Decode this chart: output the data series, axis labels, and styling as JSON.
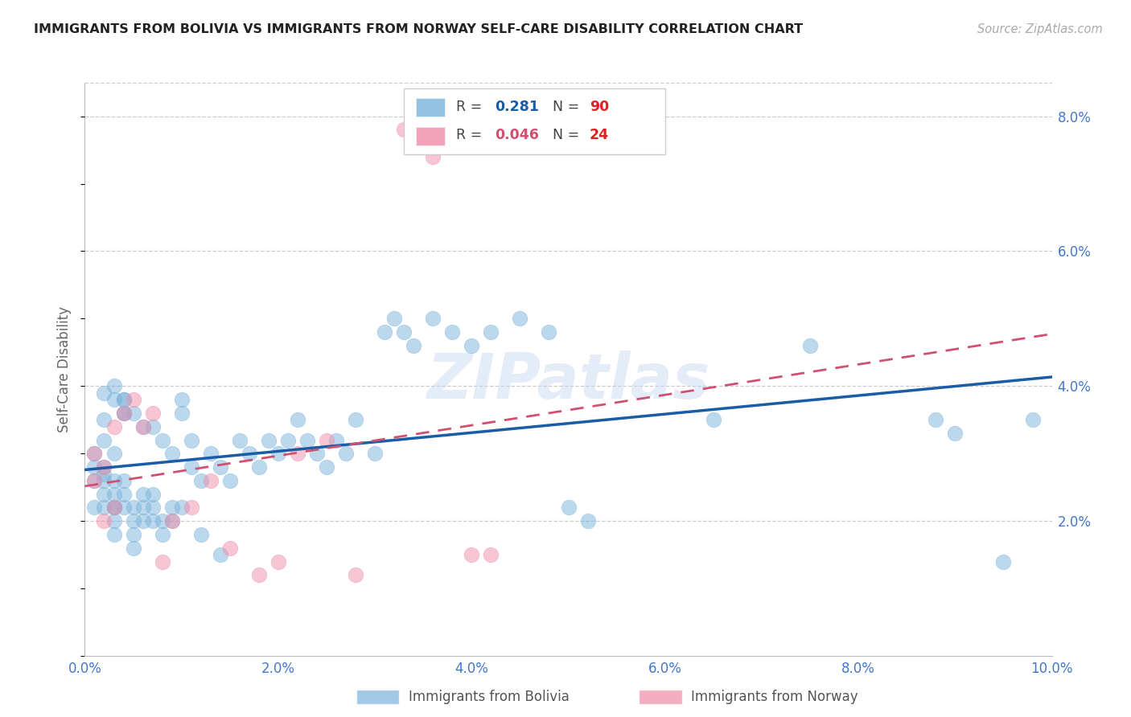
{
  "title": "IMMIGRANTS FROM BOLIVIA VS IMMIGRANTS FROM NORWAY SELF-CARE DISABILITY CORRELATION CHART",
  "source": "Source: ZipAtlas.com",
  "ylabel": "Self-Care Disability",
  "xlim": [
    0.0,
    0.1
  ],
  "ylim": [
    0.0,
    0.085
  ],
  "xticks": [
    0.0,
    0.02,
    0.04,
    0.06,
    0.08,
    0.1
  ],
  "yticks_right": [
    0.02,
    0.04,
    0.06,
    0.08
  ],
  "bolivia_color": "#7ab3db",
  "norway_color": "#f08ca8",
  "bolivia_line_color": "#1a5ca8",
  "norway_line_color": "#d05070",
  "background_color": "#ffffff",
  "grid_color": "#cccccc",
  "title_color": "#222222",
  "axis_label_color": "#666666",
  "tick_color": "#4477cc",
  "watermark": "ZIPatlas",
  "bolivia_x": [
    0.001,
    0.001,
    0.001,
    0.001,
    0.002,
    0.002,
    0.002,
    0.002,
    0.002,
    0.002,
    0.003,
    0.003,
    0.003,
    0.003,
    0.003,
    0.003,
    0.003,
    0.004,
    0.004,
    0.004,
    0.004,
    0.004,
    0.005,
    0.005,
    0.005,
    0.005,
    0.006,
    0.006,
    0.006,
    0.007,
    0.007,
    0.007,
    0.008,
    0.008,
    0.009,
    0.009,
    0.01,
    0.01,
    0.011,
    0.011,
    0.012,
    0.013,
    0.014,
    0.015,
    0.016,
    0.017,
    0.018,
    0.019,
    0.02,
    0.021,
    0.022,
    0.023,
    0.024,
    0.025,
    0.026,
    0.027,
    0.028,
    0.03,
    0.031,
    0.032,
    0.033,
    0.034,
    0.036,
    0.038,
    0.04,
    0.042,
    0.045,
    0.048,
    0.05,
    0.052,
    0.002,
    0.002,
    0.003,
    0.003,
    0.004,
    0.004,
    0.005,
    0.006,
    0.007,
    0.008,
    0.009,
    0.01,
    0.012,
    0.014,
    0.065,
    0.075,
    0.088,
    0.09,
    0.095,
    0.098
  ],
  "bolivia_y": [
    0.026,
    0.028,
    0.03,
    0.022,
    0.027,
    0.024,
    0.022,
    0.026,
    0.028,
    0.032,
    0.02,
    0.022,
    0.024,
    0.026,
    0.03,
    0.022,
    0.018,
    0.024,
    0.026,
    0.022,
    0.038,
    0.036,
    0.022,
    0.02,
    0.018,
    0.016,
    0.024,
    0.022,
    0.02,
    0.024,
    0.022,
    0.02,
    0.02,
    0.018,
    0.022,
    0.02,
    0.038,
    0.036,
    0.032,
    0.028,
    0.026,
    0.03,
    0.028,
    0.026,
    0.032,
    0.03,
    0.028,
    0.032,
    0.03,
    0.032,
    0.035,
    0.032,
    0.03,
    0.028,
    0.032,
    0.03,
    0.035,
    0.03,
    0.048,
    0.05,
    0.048,
    0.046,
    0.05,
    0.048,
    0.046,
    0.048,
    0.05,
    0.048,
    0.022,
    0.02,
    0.039,
    0.035,
    0.04,
    0.038,
    0.038,
    0.036,
    0.036,
    0.034,
    0.034,
    0.032,
    0.03,
    0.022,
    0.018,
    0.015,
    0.035,
    0.046,
    0.035,
    0.033,
    0.014,
    0.035
  ],
  "norway_x": [
    0.001,
    0.001,
    0.002,
    0.002,
    0.003,
    0.003,
    0.004,
    0.005,
    0.006,
    0.007,
    0.008,
    0.009,
    0.011,
    0.013,
    0.015,
    0.018,
    0.02,
    0.022,
    0.025,
    0.028,
    0.033,
    0.036,
    0.04,
    0.042
  ],
  "norway_y": [
    0.026,
    0.03,
    0.028,
    0.02,
    0.034,
    0.022,
    0.036,
    0.038,
    0.034,
    0.036,
    0.014,
    0.02,
    0.022,
    0.026,
    0.016,
    0.012,
    0.014,
    0.03,
    0.032,
    0.012,
    0.078,
    0.074,
    0.015,
    0.015
  ]
}
